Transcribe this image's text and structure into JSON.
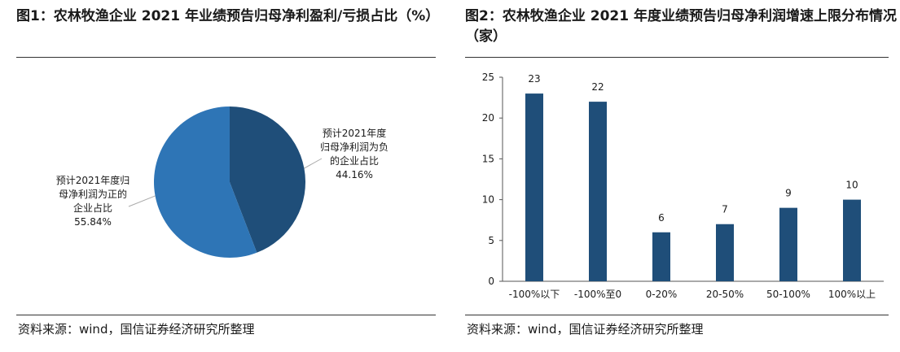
{
  "figures": [
    {
      "title": "图1：农林牧渔企业 2021 年业绩预告归母净利盈利/亏损占比（%）",
      "source": "资料来源：wind，国信证券经济研究所整理"
    },
    {
      "title": "图2：农林牧渔企业 2021 年度业绩预告归母净利润增速上限分布情况（家）",
      "source": "资料来源：wind，国信证券经济研究所整理"
    }
  ],
  "chart_data": [
    {
      "type": "pie",
      "slices": [
        {
          "label": "预计2021年度归母净利润为负的企业占比",
          "value": 44.16,
          "value_label": "44.16%",
          "color": "#1f4e79"
        },
        {
          "label": "预计2021年度归母净利润为正的企业占比",
          "value": 55.84,
          "value_label": "55.84%",
          "color": "#2e75b6"
        }
      ],
      "title": ""
    },
    {
      "type": "bar",
      "categories": [
        "-100%以下",
        "-100%至0",
        "0-20%",
        "20-50%",
        "50-100%",
        "100%以上"
      ],
      "values": [
        23,
        22,
        6,
        7,
        9,
        10
      ],
      "ylim": [
        0,
        25
      ],
      "yticks": [
        0,
        5,
        10,
        15,
        20,
        25
      ],
      "bar_color": "#1f4e79",
      "xlabel": "",
      "ylabel": "",
      "title": "",
      "grid": false,
      "data_labels": true
    }
  ]
}
